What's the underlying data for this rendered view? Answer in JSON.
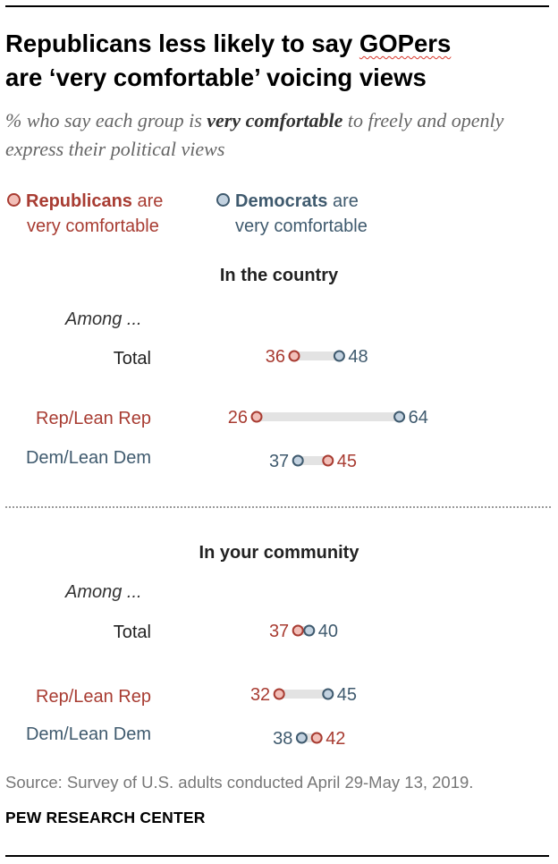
{
  "title_lines": [
    "Republicans less likely to say",
    "GOPers",
    "are ‘very comfortable’ voicing views"
  ],
  "subtitle": {
    "before": "% who say each group is ",
    "emphasis": "very comfortable",
    "after": " to freely and openly express their political views"
  },
  "legend": {
    "rep": {
      "bold": "Republicans",
      "rest": " are",
      "line2": "very comfortable"
    },
    "dem": {
      "bold": "Democrats",
      "rest": " are",
      "line2": "very comfortable"
    }
  },
  "colors": {
    "rep_stroke": "#a83c32",
    "rep_fill": "#f2bfb8",
    "dem_stroke": "#3f5a6e",
    "dem_fill": "#c3d2e0",
    "bar": "#e3e3e3"
  },
  "chart_data": {
    "type": "dot",
    "series": [
      "Republicans are very comfortable",
      "Democrats are very comfortable"
    ],
    "panels": [
      {
        "title": "In the country",
        "among_label": "Among ...",
        "rows": [
          {
            "label": "Total",
            "rep": 36,
            "dem": 48
          },
          {
            "label": "Rep/Lean Rep",
            "rep": 26,
            "dem": 64
          },
          {
            "label": "Dem/Lean Dem",
            "rep": 45,
            "dem": 37
          }
        ]
      },
      {
        "title": "In your community",
        "among_label": "Among ...",
        "rows": [
          {
            "label": "Total",
            "rep": 37,
            "dem": 40
          },
          {
            "label": "Rep/Lean Rep",
            "rep": 32,
            "dem": 45
          },
          {
            "label": "Dem/Lean Dem",
            "rep": 42,
            "dem": 38
          }
        ]
      }
    ]
  },
  "source": "Source: Survey of U.S. adults conducted April 29-May 13, 2019.",
  "credit": "PEW RESEARCH CENTER"
}
